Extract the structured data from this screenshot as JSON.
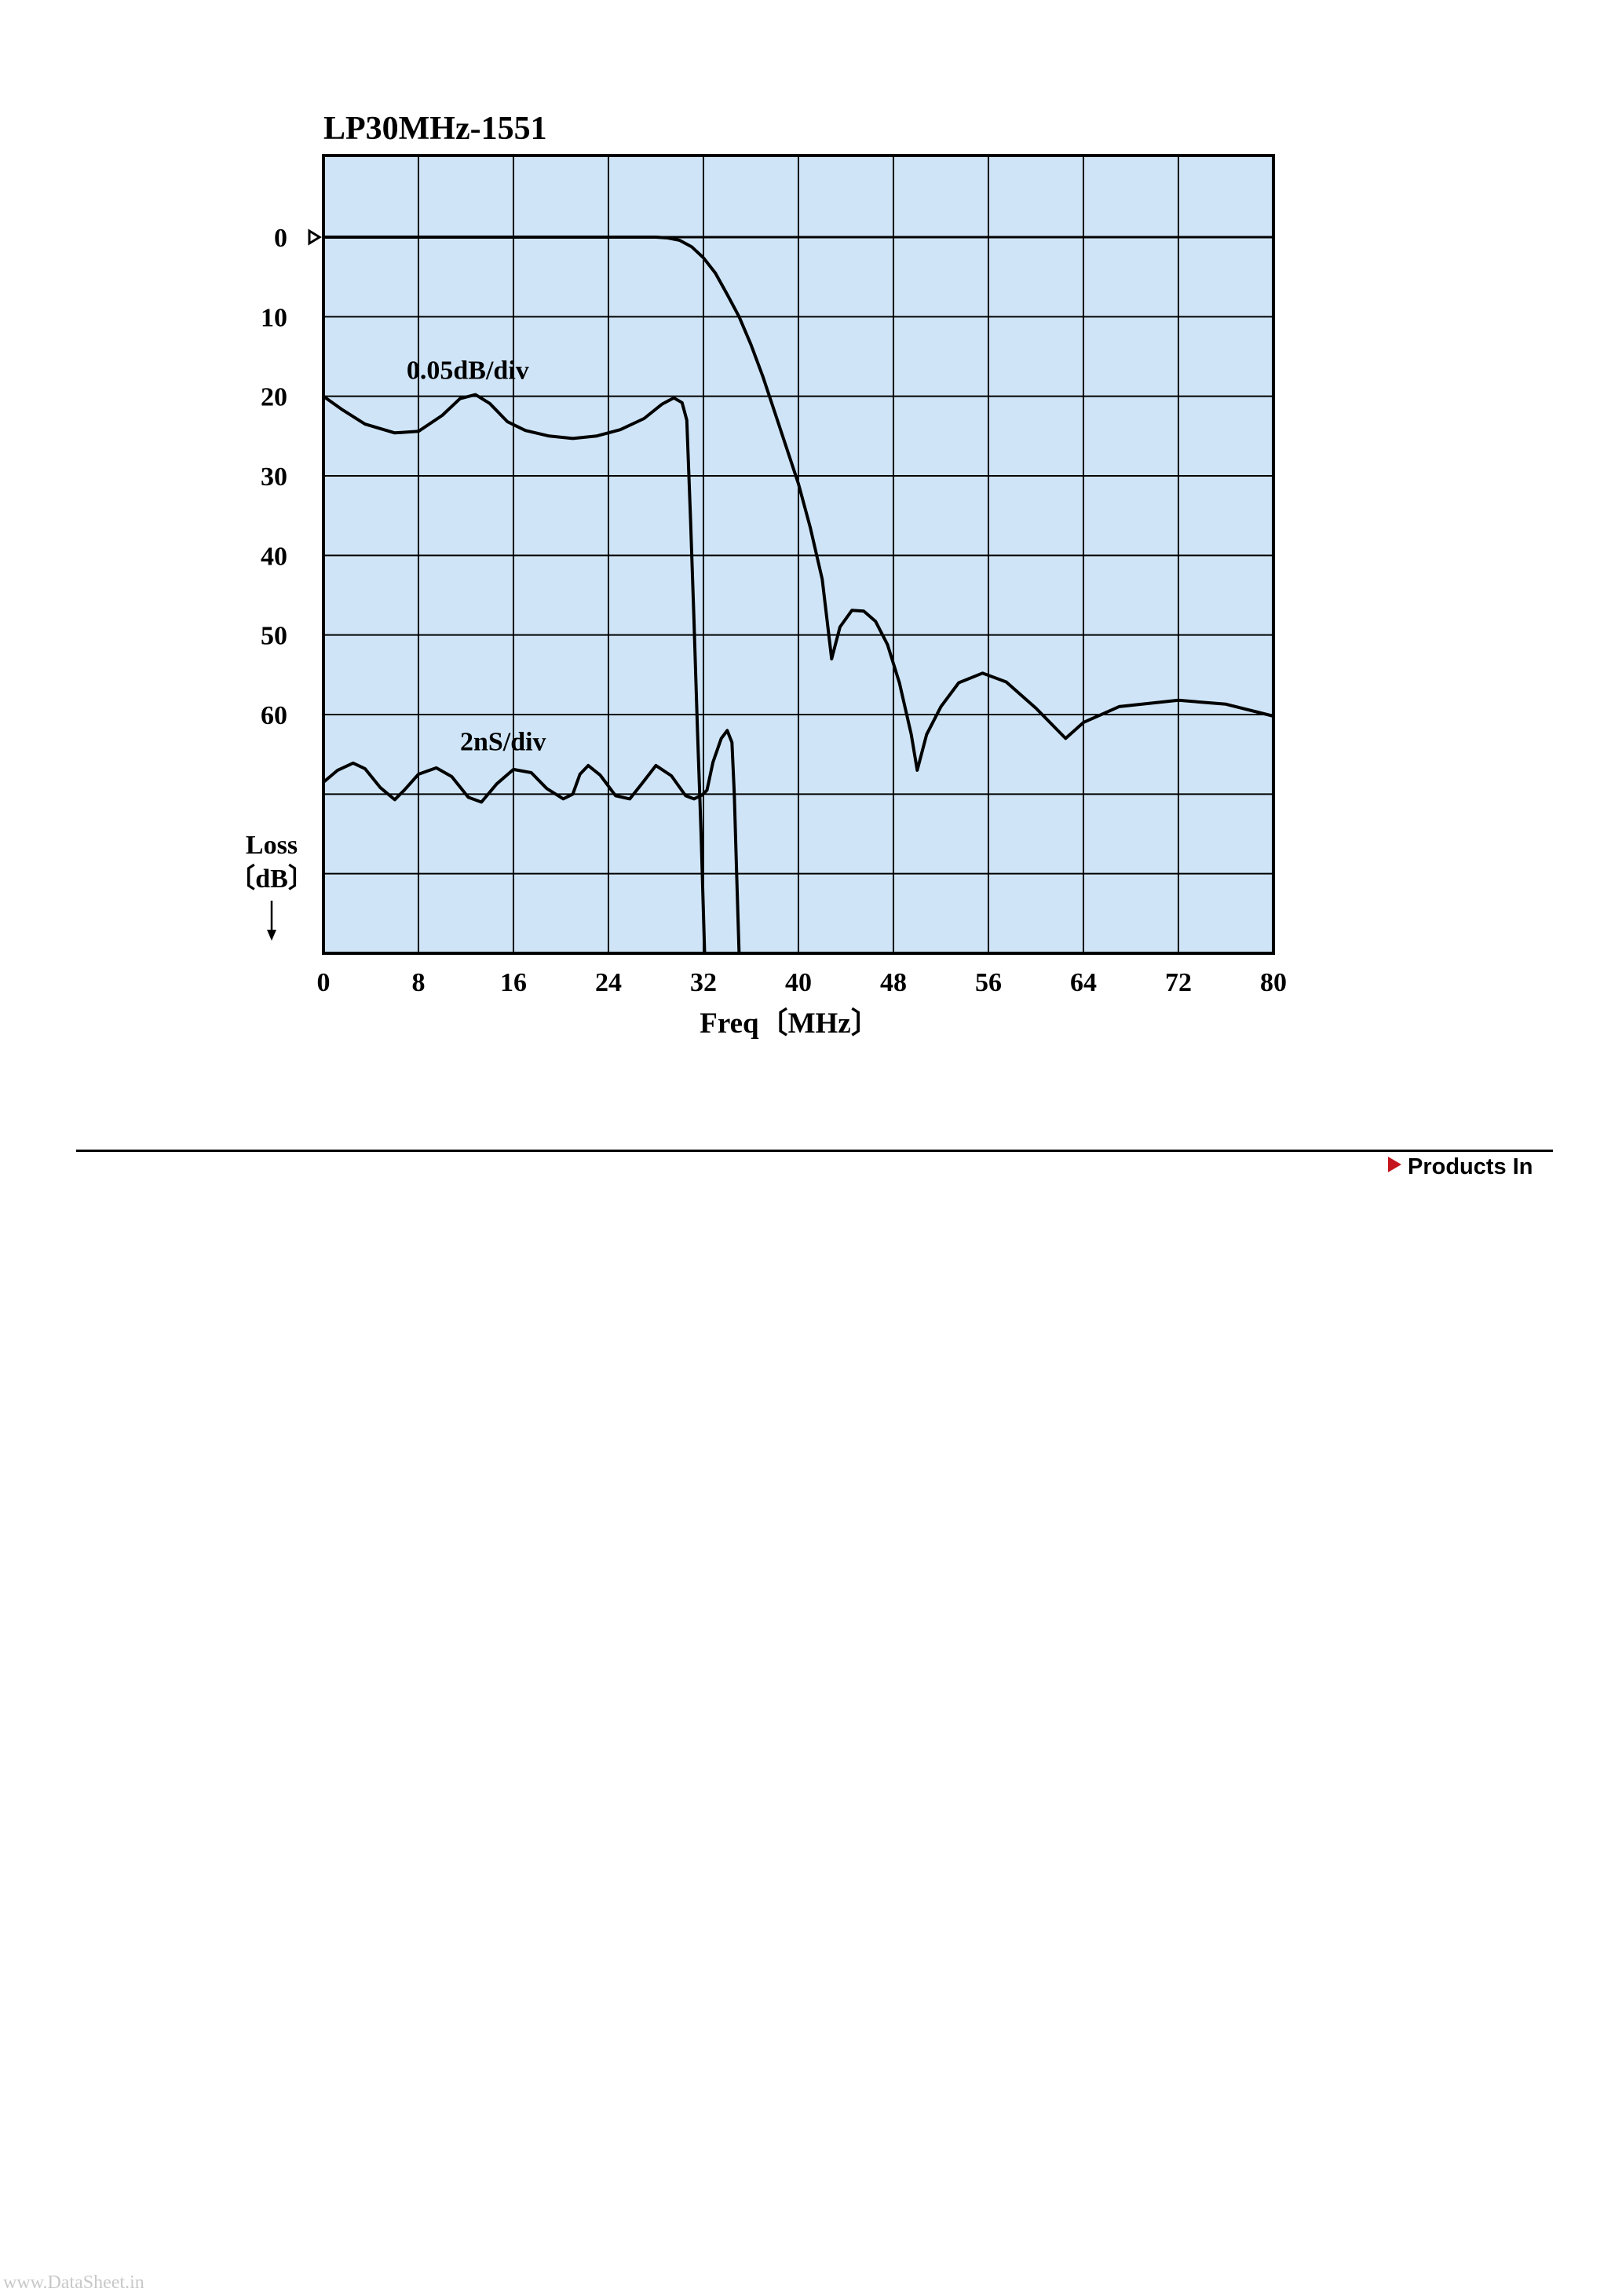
{
  "chart_data": {
    "type": "line",
    "title": "LP30MHz-1551",
    "xlabel": "Freq〔MHz〕",
    "ylabel": [
      "Loss",
      "〔dB〕"
    ],
    "x_ticks": [
      "0",
      "8",
      "16",
      "24",
      "32",
      "40",
      "48",
      "56",
      "64",
      "72",
      "80"
    ],
    "y_ticks": [
      "0",
      "10",
      "20",
      "30",
      "40",
      "50",
      "60"
    ],
    "xlim": [
      0,
      80
    ],
    "ylim": [
      0,
      90
    ],
    "y_inverted": true,
    "grid": true,
    "colors": {
      "plot_background": "#cfe5f7",
      "grid": "#000000",
      "line": "#000000"
    },
    "series": [
      {
        "name": "",
        "unit": "dB",
        "points": [
          [
            0,
            0
          ],
          [
            28,
            0
          ],
          [
            29,
            0.1
          ],
          [
            30,
            0.4
          ],
          [
            31,
            1.2
          ],
          [
            32,
            2.6
          ],
          [
            33,
            4.5
          ],
          [
            34,
            7.2
          ],
          [
            35,
            10
          ],
          [
            36,
            13.5
          ],
          [
            37,
            17.5
          ],
          [
            38,
            22
          ],
          [
            39,
            26.5
          ],
          [
            40,
            31
          ],
          [
            41,
            36.5
          ],
          [
            42,
            43
          ],
          [
            42.8,
            53
          ],
          [
            43.5,
            49
          ],
          [
            44.5,
            46.9
          ],
          [
            45.5,
            47
          ],
          [
            46.5,
            48.3
          ],
          [
            47.5,
            51.2
          ],
          [
            48.5,
            56
          ],
          [
            49.5,
            62.5
          ],
          [
            50,
            67
          ],
          [
            50.8,
            62.5
          ],
          [
            52,
            59
          ],
          [
            53.5,
            56
          ],
          [
            55.5,
            54.8
          ],
          [
            57.5,
            55.9
          ],
          [
            60,
            59.2
          ],
          [
            62.5,
            63
          ],
          [
            64,
            61
          ],
          [
            67,
            59
          ],
          [
            72,
            58.2
          ],
          [
            76,
            58.7
          ],
          [
            80,
            60.2
          ]
        ]
      },
      {
        "name": "0.05dB/div",
        "unit": "dB",
        "points": [
          [
            0,
            20
          ],
          [
            1.5,
            21.6
          ],
          [
            3.5,
            23.5
          ],
          [
            6,
            24.6
          ],
          [
            8,
            24.4
          ],
          [
            10,
            22.4
          ],
          [
            11.5,
            20.3
          ],
          [
            12.8,
            19.8
          ],
          [
            14,
            20.9
          ],
          [
            15.5,
            23.2
          ],
          [
            17,
            24.3
          ],
          [
            19,
            25
          ],
          [
            21,
            25.3
          ],
          [
            23,
            25
          ],
          [
            25,
            24.2
          ],
          [
            27,
            22.8
          ],
          [
            28.5,
            21
          ],
          [
            29.5,
            20.2
          ],
          [
            30.2,
            20.8
          ],
          [
            30.6,
            23
          ],
          [
            30.9,
            35
          ],
          [
            31.2,
            48
          ],
          [
            31.5,
            62
          ],
          [
            31.8,
            75
          ],
          [
            32.1,
            90
          ]
        ]
      },
      {
        "name": "2nS/div",
        "unit": "ns",
        "points": [
          [
            0,
            68.5
          ],
          [
            1.2,
            67
          ],
          [
            2.5,
            66.1
          ],
          [
            3.5,
            66.8
          ],
          [
            4.8,
            69.2
          ],
          [
            6,
            70.7
          ],
          [
            6.8,
            69.5
          ],
          [
            8,
            67.5
          ],
          [
            9.5,
            66.7
          ],
          [
            10.8,
            67.8
          ],
          [
            12.2,
            70.4
          ],
          [
            13.3,
            71
          ],
          [
            14.6,
            68.7
          ],
          [
            16,
            66.9
          ],
          [
            17.5,
            67.3
          ],
          [
            18.8,
            69.3
          ],
          [
            20.2,
            70.6
          ],
          [
            21,
            70
          ],
          [
            21.6,
            67.5
          ],
          [
            22.3,
            66.4
          ],
          [
            23.3,
            67.6
          ],
          [
            24.6,
            70.2
          ],
          [
            25.8,
            70.6
          ],
          [
            26.8,
            68.7
          ],
          [
            28,
            66.4
          ],
          [
            29.3,
            67.7
          ],
          [
            30.5,
            70.2
          ],
          [
            31.2,
            70.6
          ],
          [
            31.9,
            70.1
          ],
          [
            32.3,
            69.5
          ],
          [
            32.8,
            66
          ],
          [
            33.5,
            63
          ],
          [
            34,
            62
          ],
          [
            34.4,
            63.5
          ],
          [
            34.6,
            70
          ],
          [
            34.8,
            80
          ],
          [
            35,
            90
          ]
        ]
      }
    ]
  },
  "reference_marker": {
    "y": 0
  },
  "footer": {
    "link_label": "Products In"
  },
  "watermark": "www.DataSheet.in"
}
